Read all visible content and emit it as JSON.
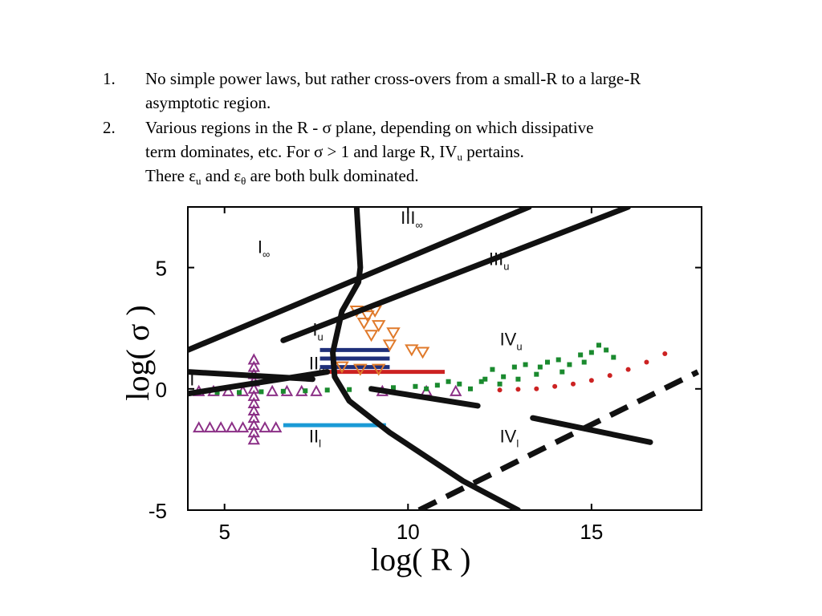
{
  "bullets": [
    {
      "number": "1.",
      "lines": [
        "No simple power laws, but rather cross-overs from a small-R to a large-R",
        "asymptotic region."
      ]
    },
    {
      "number": "2.",
      "line1": "Various regions in the R - σ plane, depending on which dissipative",
      "line2_text": "term dominates, etc. For σ > 1 and large R, IV",
      "line2_sub": "u",
      "line2_tail": " pertains.",
      "line3_a": "There ε",
      "line3_sub1": "u",
      "line3_b": " and ε",
      "line3_sub2": "θ",
      "line3_c": " are both bulk dominated."
    }
  ],
  "chart_data": {
    "type": "scatter",
    "xlabel": "log( R )",
    "ylabel": "log( σ )",
    "xlim": [
      4,
      18
    ],
    "ylim": [
      -5,
      7.5
    ],
    "xticks": [
      5,
      10,
      15
    ],
    "yticks": [
      -5,
      0,
      5
    ],
    "xtick_labels": [
      "5",
      "10",
      "15"
    ],
    "ytick_labels": [
      "-5",
      "0",
      "5"
    ],
    "regions": [
      {
        "main": "I",
        "sub": "∞",
        "x": 5.9,
        "y": 5.6
      },
      {
        "main": "I",
        "sub": "u",
        "x": 7.4,
        "y": 2.2
      },
      {
        "main": "II",
        "sub": "u",
        "x": 7.3,
        "y": 0.8
      },
      {
        "main": "II",
        "sub": "l",
        "x": 7.3,
        "y": -2.2
      },
      {
        "main": "III",
        "sub": "∞",
        "x": 9.8,
        "y": 6.8
      },
      {
        "main": "III",
        "sub": "u",
        "x": 12.2,
        "y": 5.1
      },
      {
        "main": "IV",
        "sub": "u",
        "x": 12.5,
        "y": 1.8
      },
      {
        "main": "IV",
        "sub": "l",
        "x": 12.5,
        "y": -2.2
      },
      {
        "main": "I",
        "sub": "",
        "x": 4.05,
        "y": 0.15
      }
    ],
    "boundaries": [
      {
        "style": "solid",
        "points": [
          [
            8.6,
            7.5
          ],
          [
            8.7,
            5.0
          ],
          [
            8.65,
            4.4
          ],
          [
            8.2,
            3.2
          ],
          [
            7.95,
            1.5
          ],
          [
            8.0,
            0.5
          ],
          [
            8.4,
            -0.5
          ],
          [
            9.5,
            -1.8
          ],
          [
            11.5,
            -3.8
          ],
          [
            13.0,
            -5.0
          ]
        ]
      },
      {
        "style": "solid",
        "points": [
          [
            4.0,
            1.6
          ],
          [
            13.3,
            7.5
          ]
        ]
      },
      {
        "style": "solid",
        "points": [
          [
            6.6,
            2.0
          ],
          [
            16.0,
            7.5
          ]
        ]
      },
      {
        "style": "solid",
        "points": [
          [
            4.0,
            0.7
          ],
          [
            7.4,
            0.4
          ]
        ]
      },
      {
        "style": "solid",
        "points": [
          [
            4.0,
            -0.2
          ],
          [
            7.8,
            0.7
          ]
        ]
      },
      {
        "style": "solid",
        "points": [
          [
            9.0,
            0.0
          ],
          [
            11.9,
            -0.7
          ]
        ]
      },
      {
        "style": "solid",
        "points": [
          [
            13.4,
            -1.2
          ],
          [
            16.6,
            -2.2
          ]
        ]
      },
      {
        "style": "dashed",
        "points": [
          [
            10.3,
            -5.0
          ],
          [
            17.9,
            0.7
          ]
        ]
      }
    ],
    "series": [
      {
        "marker": "triangle-up",
        "color": "#8b2f86",
        "points": [
          [
            4.3,
            -0.1
          ],
          [
            4.7,
            -0.1
          ],
          [
            5.1,
            -0.1
          ],
          [
            5.5,
            -0.1
          ],
          [
            6.3,
            -0.1
          ],
          [
            6.7,
            -0.1
          ],
          [
            7.1,
            -0.1
          ],
          [
            7.5,
            -0.1
          ],
          [
            9.3,
            -0.1
          ],
          [
            10.5,
            -0.1
          ],
          [
            11.3,
            -0.1
          ],
          [
            5.8,
            1.2
          ],
          [
            5.8,
            0.9
          ],
          [
            5.8,
            0.6
          ],
          [
            5.8,
            0.3
          ],
          [
            5.8,
            0.0
          ],
          [
            5.8,
            -0.3
          ],
          [
            5.8,
            -0.6
          ],
          [
            5.8,
            -0.9
          ],
          [
            5.8,
            -1.2
          ],
          [
            5.8,
            -1.5
          ],
          [
            5.8,
            -1.8
          ],
          [
            5.8,
            -2.1
          ],
          [
            4.3,
            -1.6
          ],
          [
            4.6,
            -1.6
          ],
          [
            4.9,
            -1.6
          ],
          [
            5.2,
            -1.6
          ],
          [
            5.5,
            -1.6
          ],
          [
            6.1,
            -1.6
          ],
          [
            6.4,
            -1.6
          ]
        ]
      },
      {
        "marker": "triangle-down",
        "color": "#e07a2b",
        "points": [
          [
            8.6,
            3.2
          ],
          [
            8.9,
            3.0
          ],
          [
            9.1,
            3.2
          ],
          [
            8.8,
            2.7
          ],
          [
            9.2,
            2.6
          ],
          [
            9.0,
            2.2
          ],
          [
            9.6,
            2.3
          ],
          [
            9.5,
            1.8
          ],
          [
            10.1,
            1.6
          ],
          [
            10.4,
            1.5
          ],
          [
            8.2,
            0.9
          ],
          [
            8.7,
            0.8
          ],
          [
            9.2,
            0.8
          ]
        ]
      },
      {
        "marker": "square",
        "color": "#1a8a2e",
        "points": [
          [
            4.2,
            -0.15
          ],
          [
            4.8,
            -0.15
          ],
          [
            5.4,
            -0.15
          ],
          [
            6.0,
            -0.12
          ],
          [
            6.6,
            -0.1
          ],
          [
            7.2,
            -0.08
          ],
          [
            7.8,
            -0.05
          ],
          [
            8.4,
            -0.03
          ],
          [
            9.0,
            0.0
          ],
          [
            9.6,
            0.05
          ],
          [
            10.2,
            0.1
          ],
          [
            10.8,
            0.15
          ],
          [
            11.4,
            0.2
          ],
          [
            12.0,
            0.3
          ],
          [
            12.3,
            0.8
          ],
          [
            12.6,
            0.5
          ],
          [
            12.9,
            0.9
          ],
          [
            13.2,
            1.0
          ],
          [
            13.5,
            0.6
          ],
          [
            13.8,
            1.1
          ],
          [
            14.1,
            1.2
          ],
          [
            14.4,
            1.0
          ],
          [
            14.7,
            1.4
          ],
          [
            15.0,
            1.5
          ],
          [
            15.2,
            1.8
          ],
          [
            15.4,
            1.6
          ],
          [
            15.6,
            1.3
          ],
          [
            12.1,
            0.4
          ],
          [
            12.5,
            0.2
          ],
          [
            13.0,
            0.4
          ],
          [
            13.6,
            0.9
          ],
          [
            14.2,
            0.7
          ],
          [
            14.8,
            1.1
          ],
          [
            10.5,
            0.0
          ],
          [
            11.1,
            0.3
          ],
          [
            11.7,
            0.0
          ]
        ]
      },
      {
        "marker": "dot",
        "color": "#cc2222",
        "points": [
          [
            12.5,
            -0.05
          ],
          [
            13.0,
            -0.02
          ],
          [
            13.5,
            0.0
          ],
          [
            14.0,
            0.1
          ],
          [
            14.5,
            0.2
          ],
          [
            15.0,
            0.35
          ],
          [
            15.5,
            0.55
          ],
          [
            16.0,
            0.8
          ],
          [
            16.5,
            1.1
          ],
          [
            17.0,
            1.45
          ]
        ]
      }
    ],
    "bands": [
      {
        "color": "#1f2f7a",
        "y": 1.6,
        "x1": 7.6,
        "x2": 9.5
      },
      {
        "color": "#1f2f7a",
        "y": 1.25,
        "x1": 7.6,
        "x2": 9.5
      },
      {
        "color": "#1f2f7a",
        "y": 0.9,
        "x1": 7.6,
        "x2": 9.5
      },
      {
        "color": "#cc2222",
        "y": 0.7,
        "x1": 7.8,
        "x2": 11.0
      },
      {
        "color": "#1a9ad6",
        "y": -1.5,
        "x1": 6.6,
        "x2": 9.4
      }
    ]
  }
}
